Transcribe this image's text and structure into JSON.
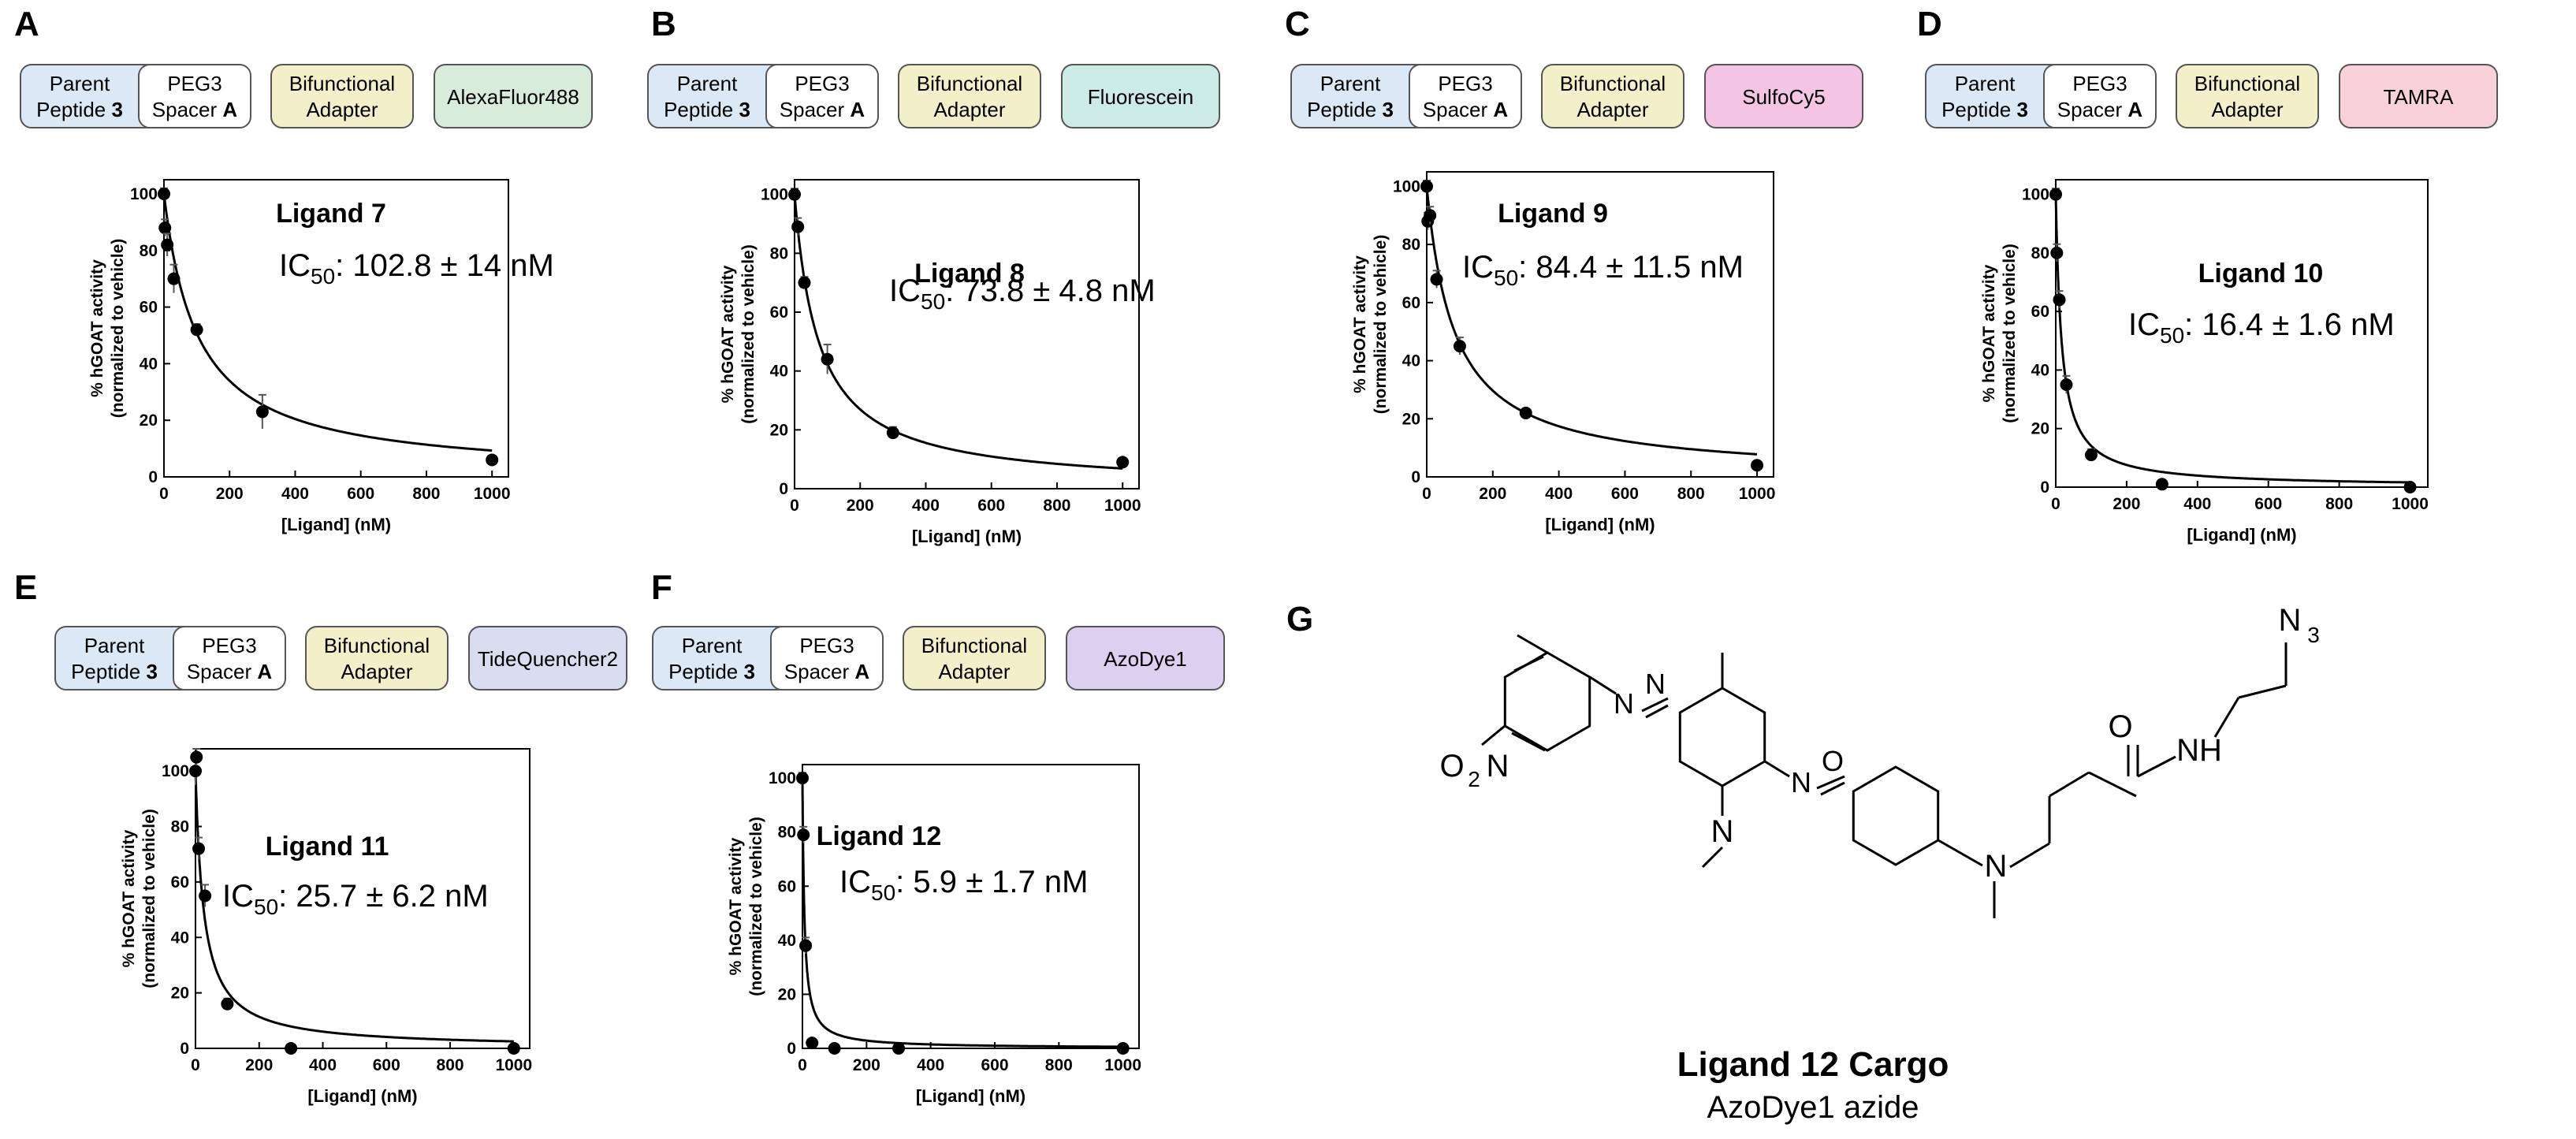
{
  "panels": [
    {
      "letter": "A",
      "cargo": "AlexaFluor488",
      "ligand": "Ligand 7",
      "ic50_prefix": "IC",
      "ic50_sub": "50",
      "ic50_value": ": 102.8 ± 14 nM"
    },
    {
      "letter": "B",
      "cargo": "Fluorescein",
      "ligand": "Ligand 8",
      "ic50_prefix": "IC",
      "ic50_sub": "50",
      "ic50_value": ": 73.8 ± 4.8 nM"
    },
    {
      "letter": "C",
      "cargo": "SulfoCy5",
      "ligand": "Ligand 9",
      "ic50_prefix": "IC",
      "ic50_sub": "50",
      "ic50_value": ": 84.4 ± 11.5 nM"
    },
    {
      "letter": "D",
      "cargo": "TAMRA",
      "ligand": "Ligand 10",
      "ic50_prefix": "IC",
      "ic50_sub": "50",
      "ic50_value": ": 16.4 ± 1.6 nM"
    },
    {
      "letter": "E",
      "cargo": "TideQuencher2",
      "ligand": "Ligand 11",
      "ic50_prefix": "IC",
      "ic50_sub": "50",
      "ic50_value": ": 25.7 ±  6.2 nM"
    },
    {
      "letter": "F",
      "cargo": "AzoDye1",
      "ligand": "Ligand 12",
      "ic50_prefix": "IC",
      "ic50_sub": "50",
      "ic50_value": ": 5.9 ±  1.7 nM"
    }
  ],
  "construct": {
    "parent_line1": "Parent",
    "parent_line2": "Peptide ",
    "parent_bold": "3",
    "peg_line1": "PEG3",
    "peg_line2": "Spacer ",
    "peg_bold": "A",
    "bif_line1": "Bifunctional",
    "bif_line2": "Adapter"
  },
  "colors": {
    "parent": "#dbe9f6",
    "peg": "#ffffff",
    "bifunctional": "#f3efc9",
    "cargo": [
      "#d7ecda",
      "#cdebe6",
      "#f3c4e3",
      "#f8d2d8",
      "#d8def0",
      "#dccff0"
    ],
    "stroke": "#555555"
  },
  "chemistry": {
    "panel_letter": "G",
    "title": "Ligand 12 Cargo",
    "subtitle": "AzoDye1 azide",
    "atom_labels": [
      "N",
      "3",
      "O",
      "NH",
      "N",
      "N",
      "N",
      "N",
      "O",
      "N",
      "O",
      "2",
      "N"
    ]
  },
  "chart_data": [
    {
      "type": "scatter",
      "title": "Ligand 7",
      "xlabel": "[Ligand] (nM)",
      "ylabel_line1": "% hGOAT activity",
      "ylabel_line2": "(normalized to vehicle)",
      "xlim": [
        0,
        1050
      ],
      "ylim": [
        0,
        105
      ],
      "xticks": [
        0,
        200,
        400,
        600,
        800,
        1000
      ],
      "yticks": [
        0,
        20,
        40,
        60,
        80,
        100
      ],
      "x": [
        0,
        3,
        10,
        30,
        100,
        300,
        1000
      ],
      "y": [
        100,
        88,
        82,
        70,
        52,
        23,
        6
      ],
      "err": [
        2,
        3,
        4,
        5,
        2,
        6,
        1
      ],
      "ic50": 102.8
    },
    {
      "type": "scatter",
      "title": "Ligand 8",
      "xlabel": "[Ligand] (nM)",
      "ylabel_line1": "% hGOAT activity",
      "ylabel_line2": "(normalized to vehicle)",
      "xlim": [
        0,
        1050
      ],
      "ylim": [
        0,
        105
      ],
      "xticks": [
        0,
        200,
        400,
        600,
        800,
        1000
      ],
      "yticks": [
        0,
        20,
        40,
        60,
        80,
        100
      ],
      "x": [
        0,
        10,
        30,
        100,
        300,
        1000
      ],
      "y": [
        100,
        89,
        70,
        44,
        19,
        9
      ],
      "err": [
        2,
        3,
        2,
        5,
        2,
        1
      ],
      "ic50": 73.8
    },
    {
      "type": "scatter",
      "title": "Ligand 9",
      "xlabel": "[Ligand] (nM)",
      "ylabel_line1": "% hGOAT activity",
      "ylabel_line2": "(normalized to vehicle)",
      "xlim": [
        0,
        1050
      ],
      "ylim": [
        0,
        105
      ],
      "xticks": [
        0,
        200,
        400,
        600,
        800,
        1000
      ],
      "yticks": [
        0,
        20,
        40,
        60,
        80,
        100
      ],
      "x": [
        0,
        3,
        10,
        30,
        100,
        300,
        1000
      ],
      "y": [
        100,
        88,
        90,
        68,
        45,
        22,
        4
      ],
      "err": [
        2,
        3,
        3,
        3,
        3,
        1,
        1
      ],
      "ic50": 84.4
    },
    {
      "type": "scatter",
      "title": "Ligand 10",
      "xlabel": "[Ligand] (nM)",
      "ylabel_line1": "% hGOAT activity",
      "ylabel_line2": "(normalized to vehicle)",
      "xlim": [
        0,
        1050
      ],
      "ylim": [
        0,
        105
      ],
      "xticks": [
        0,
        200,
        400,
        600,
        800,
        1000
      ],
      "yticks": [
        0,
        20,
        40,
        60,
        80,
        100
      ],
      "x": [
        0,
        3,
        10,
        30,
        100,
        300,
        1000
      ],
      "y": [
        100,
        80,
        64,
        35,
        11,
        1,
        0
      ],
      "err": [
        2,
        3,
        3,
        3,
        2,
        1,
        1
      ],
      "ic50": 16.4
    },
    {
      "type": "scatter",
      "title": "Ligand 11",
      "xlabel": "[Ligand] (nM)",
      "ylabel_line1": "% hGOAT activity",
      "ylabel_line2": "(normalized to vehicle)",
      "xlim": [
        0,
        1050
      ],
      "ylim": [
        0,
        108
      ],
      "xticks": [
        0,
        200,
        400,
        600,
        800,
        1000
      ],
      "yticks": [
        0,
        20,
        40,
        60,
        80,
        100
      ],
      "x": [
        0,
        3,
        10,
        30,
        100,
        300,
        1000
      ],
      "y": [
        100,
        105,
        72,
        55,
        16,
        0,
        0
      ],
      "err": [
        5,
        3,
        4,
        4,
        2,
        1,
        1
      ],
      "ic50": 25.7
    },
    {
      "type": "scatter",
      "title": "Ligand 12",
      "xlabel": "[Ligand] (nM)",
      "ylabel_line1": "% hGOAT activity",
      "ylabel_line2": "(normalized to vehicle)",
      "xlim": [
        0,
        1050
      ],
      "ylim": [
        0,
        105
      ],
      "xticks": [
        0,
        200,
        400,
        600,
        800,
        1000
      ],
      "yticks": [
        0,
        20,
        40,
        60,
        80,
        100
      ],
      "x": [
        0,
        3,
        10,
        30,
        100,
        300,
        1000
      ],
      "y": [
        100,
        79,
        38,
        2,
        0,
        0,
        0
      ],
      "err": [
        2,
        3,
        3,
        1,
        1,
        1,
        1
      ],
      "ic50": 5.9
    }
  ]
}
